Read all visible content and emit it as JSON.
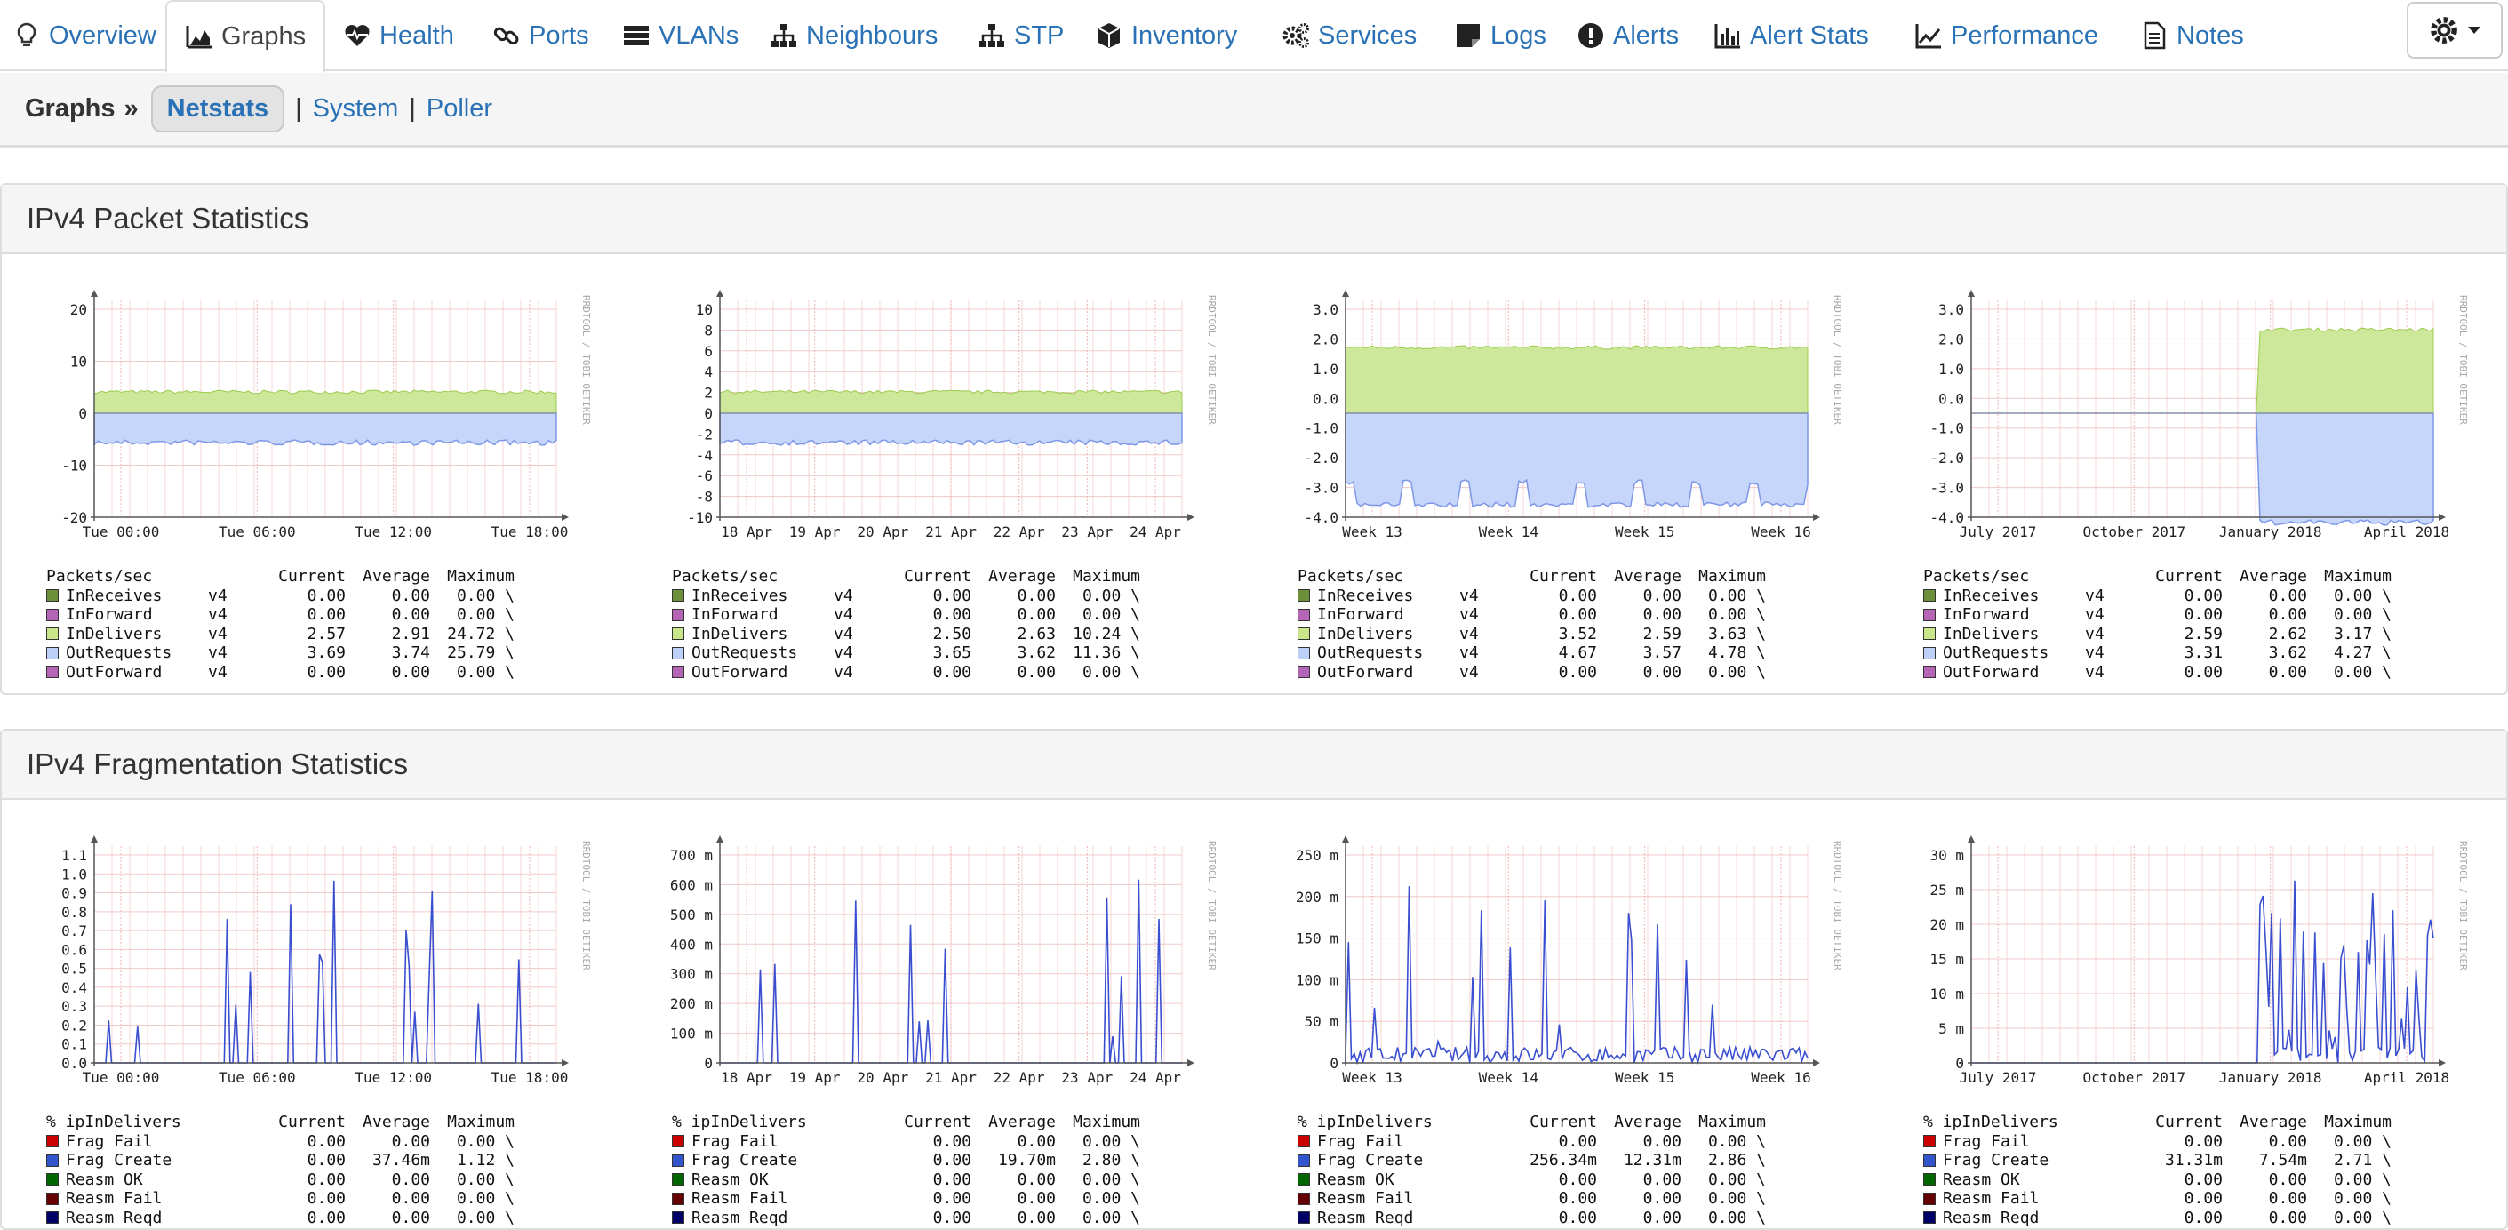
{
  "nav": {
    "tabs": [
      {
        "label": "Overview",
        "icon": "lightbulb-icon",
        "active": false
      },
      {
        "label": "Graphs",
        "icon": "area-chart-icon",
        "active": true
      },
      {
        "label": "Health",
        "icon": "heartbeat-icon",
        "active": false
      },
      {
        "label": "Ports",
        "icon": "link-icon",
        "active": false
      },
      {
        "label": "VLANs",
        "icon": "server-icon",
        "active": false
      },
      {
        "label": "Neighbours",
        "icon": "sitemap-icon",
        "active": false
      },
      {
        "label": "STP",
        "icon": "sitemap-icon",
        "active": false
      },
      {
        "label": "Inventory",
        "icon": "cube-icon",
        "active": false
      },
      {
        "label": "Services",
        "icon": "cogs-icon",
        "active": false
      },
      {
        "label": "Logs",
        "icon": "sticky-note-icon",
        "active": false
      },
      {
        "label": "Alerts",
        "icon": "exclamation-circle-icon",
        "active": false
      },
      {
        "label": "Alert Stats",
        "icon": "bar-chart-icon",
        "active": false
      },
      {
        "label": "Performance",
        "icon": "line-chart-icon",
        "active": false
      },
      {
        "label": "Notes",
        "icon": "file-text-icon",
        "active": false
      }
    ],
    "settings_icon": "gear-icon"
  },
  "subnav": {
    "lead": "Graphs",
    "separator": "»",
    "active": "Netstats",
    "links": [
      "System",
      "Poller"
    ],
    "divider": "|"
  },
  "panels": [
    {
      "title": "IPv4 Packet Statistics",
      "legend_header": {
        "label": "Packets/sec",
        "current": "Current",
        "average": "Average",
        "maximum": "Maximum"
      },
      "legend_colors": [
        "#6c8f3a",
        "#b565b5",
        "#c9e78a",
        "#bdd0f7",
        "#b565b5"
      ],
      "graphs": [
        {
          "watermark": "RRDTOOL / TOBI OETIKER",
          "x_labels": [
            "Tue 00:00",
            "Tue 06:00",
            "Tue 12:00",
            "Tue 18:00"
          ],
          "y_labels": [
            "20",
            "10",
            "0",
            "-10",
            "-20"
          ],
          "rows": [
            {
              "name": "InReceives",
              "ver": "v4",
              "current": "0.00",
              "average": "0.00",
              "maximum": "0.00 \\"
            },
            {
              "name": "InForward",
              "ver": "v4",
              "current": "0.00",
              "average": "0.00",
              "maximum": "0.00 \\"
            },
            {
              "name": "InDelivers",
              "ver": "v4",
              "current": "2.57",
              "average": "2.91",
              "maximum": "24.72 \\"
            },
            {
              "name": "OutRequests",
              "ver": "v4",
              "current": "3.69",
              "average": "3.74",
              "maximum": "25.79 \\"
            },
            {
              "name": "OutForward",
              "ver": "v4",
              "current": "0.00",
              "average": "0.00",
              "maximum": "0.00 \\"
            }
          ]
        },
        {
          "watermark": "RRDTOOL / TOBI OETIKER",
          "x_labels": [
            "18 Apr",
            "19 Apr",
            "20 Apr",
            "21 Apr",
            "22 Apr",
            "23 Apr",
            "24 Apr"
          ],
          "y_labels": [
            "10",
            "8",
            "6",
            "4",
            "2",
            "0",
            "-2",
            "-4",
            "-6",
            "-8",
            "-10"
          ],
          "rows": [
            {
              "name": "InReceives",
              "ver": "v4",
              "current": "0.00",
              "average": "0.00",
              "maximum": "0.00 \\"
            },
            {
              "name": "InForward",
              "ver": "v4",
              "current": "0.00",
              "average": "0.00",
              "maximum": "0.00 \\"
            },
            {
              "name": "InDelivers",
              "ver": "v4",
              "current": "2.50",
              "average": "2.63",
              "maximum": "10.24 \\"
            },
            {
              "name": "OutRequests",
              "ver": "v4",
              "current": "3.65",
              "average": "3.62",
              "maximum": "11.36 \\"
            },
            {
              "name": "OutForward",
              "ver": "v4",
              "current": "0.00",
              "average": "0.00",
              "maximum": "0.00 \\"
            }
          ]
        },
        {
          "watermark": "RRDTOOL / TOBI OETIKER",
          "x_labels": [
            "Week 13",
            "Week 14",
            "Week 15",
            "Week 16"
          ],
          "y_labels": [
            "3.0",
            "2.0",
            "1.0",
            "0.0",
            "-1.0",
            "-2.0",
            "-3.0",
            "-4.0"
          ],
          "rows": [
            {
              "name": "InReceives",
              "ver": "v4",
              "current": "0.00",
              "average": "0.00",
              "maximum": "0.00 \\"
            },
            {
              "name": "InForward",
              "ver": "v4",
              "current": "0.00",
              "average": "0.00",
              "maximum": "0.00 \\"
            },
            {
              "name": "InDelivers",
              "ver": "v4",
              "current": "3.52",
              "average": "2.59",
              "maximum": "3.63 \\"
            },
            {
              "name": "OutRequests",
              "ver": "v4",
              "current": "4.67",
              "average": "3.57",
              "maximum": "4.78 \\"
            },
            {
              "name": "OutForward",
              "ver": "v4",
              "current": "0.00",
              "average": "0.00",
              "maximum": "0.00 \\"
            }
          ]
        },
        {
          "watermark": "RRDTOOL / TOBI OETIKER",
          "x_labels": [
            "July 2017",
            "October 2017",
            "January 2018",
            "April 2018"
          ],
          "y_labels": [
            "3.0",
            "2.0",
            "1.0",
            "0.0",
            "-1.0",
            "-2.0",
            "-3.0",
            "-4.0"
          ],
          "rows": [
            {
              "name": "InReceives",
              "ver": "v4",
              "current": "0.00",
              "average": "0.00",
              "maximum": "0.00 \\"
            },
            {
              "name": "InForward",
              "ver": "v4",
              "current": "0.00",
              "average": "0.00",
              "maximum": "0.00 \\"
            },
            {
              "name": "InDelivers",
              "ver": "v4",
              "current": "2.59",
              "average": "2.62",
              "maximum": "3.17 \\"
            },
            {
              "name": "OutRequests",
              "ver": "v4",
              "current": "3.31",
              "average": "3.62",
              "maximum": "4.27 \\"
            },
            {
              "name": "OutForward",
              "ver": "v4",
              "current": "0.00",
              "average": "0.00",
              "maximum": "0.00 \\"
            }
          ]
        }
      ]
    },
    {
      "title": "IPv4 Fragmentation Statistics",
      "legend_header": {
        "label": "% ipInDelivers",
        "current": "Current",
        "average": "Average",
        "maximum": "Maximum"
      },
      "legend_colors": [
        "#cc0000",
        "#3355cc",
        "#006600",
        "#660000",
        "#000066"
      ],
      "graphs": [
        {
          "watermark": "RRDTOOL / TOBI OETIKER",
          "x_labels": [
            "Tue 00:00",
            "Tue 06:00",
            "Tue 12:00",
            "Tue 18:00"
          ],
          "y_labels": [
            "1.1",
            "1.0",
            "0.9",
            "0.8",
            "0.7",
            "0.6",
            "0.5",
            "0.4",
            "0.3",
            "0.2",
            "0.1",
            "0.0"
          ],
          "rows": [
            {
              "name": "Frag Fail",
              "ver": "",
              "current": "0.00",
              "average": "0.00",
              "maximum": "0.00 \\"
            },
            {
              "name": "Frag Create",
              "ver": "",
              "current": "0.00",
              "average": "37.46m",
              "maximum": "1.12 \\"
            },
            {
              "name": "Reasm OK",
              "ver": "",
              "current": "0.00",
              "average": "0.00",
              "maximum": "0.00 \\"
            },
            {
              "name": "Reasm Fail",
              "ver": "",
              "current": "0.00",
              "average": "0.00",
              "maximum": "0.00 \\"
            },
            {
              "name": "Reasm Reqd",
              "ver": "",
              "current": "0.00",
              "average": "0.00",
              "maximum": "0.00 \\"
            }
          ]
        },
        {
          "watermark": "RRDTOOL / TOBI OETIKER",
          "x_labels": [
            "18 Apr",
            "19 Apr",
            "20 Apr",
            "21 Apr",
            "22 Apr",
            "23 Apr",
            "24 Apr"
          ],
          "y_labels": [
            "700 m",
            "600 m",
            "500 m",
            "400 m",
            "300 m",
            "200 m",
            "100 m",
            "0"
          ],
          "rows": [
            {
              "name": "Frag Fail",
              "ver": "",
              "current": "0.00",
              "average": "0.00",
              "maximum": "0.00 \\"
            },
            {
              "name": "Frag Create",
              "ver": "",
              "current": "0.00",
              "average": "19.70m",
              "maximum": "2.80 \\"
            },
            {
              "name": "Reasm OK",
              "ver": "",
              "current": "0.00",
              "average": "0.00",
              "maximum": "0.00 \\"
            },
            {
              "name": "Reasm Fail",
              "ver": "",
              "current": "0.00",
              "average": "0.00",
              "maximum": "0.00 \\"
            },
            {
              "name": "Reasm Reqd",
              "ver": "",
              "current": "0.00",
              "average": "0.00",
              "maximum": "0.00 \\"
            }
          ]
        },
        {
          "watermark": "RRDTOOL / TOBI OETIKER",
          "x_labels": [
            "Week 13",
            "Week 14",
            "Week 15",
            "Week 16"
          ],
          "y_labels": [
            "250 m",
            "200 m",
            "150 m",
            "100 m",
            "50 m",
            "0"
          ],
          "rows": [
            {
              "name": "Frag Fail",
              "ver": "",
              "current": "0.00",
              "average": "0.00",
              "maximum": "0.00 \\"
            },
            {
              "name": "Frag Create",
              "ver": "",
              "current": "256.34m",
              "average": "12.31m",
              "maximum": "2.86 \\"
            },
            {
              "name": "Reasm OK",
              "ver": "",
              "current": "0.00",
              "average": "0.00",
              "maximum": "0.00 \\"
            },
            {
              "name": "Reasm Fail",
              "ver": "",
              "current": "0.00",
              "average": "0.00",
              "maximum": "0.00 \\"
            },
            {
              "name": "Reasm Reqd",
              "ver": "",
              "current": "0.00",
              "average": "0.00",
              "maximum": "0.00 \\"
            }
          ]
        },
        {
          "watermark": "RRDTOOL / TOBI OETIKER",
          "x_labels": [
            "July 2017",
            "October 2017",
            "January 2018",
            "April 2018"
          ],
          "y_labels": [
            "30 m",
            "25 m",
            "20 m",
            "15 m",
            "10 m",
            "5 m",
            "0"
          ],
          "rows": [
            {
              "name": "Frag Fail",
              "ver": "",
              "current": "0.00",
              "average": "0.00",
              "maximum": "0.00 \\"
            },
            {
              "name": "Frag Create",
              "ver": "",
              "current": "31.31m",
              "average": "7.54m",
              "maximum": "2.71 \\"
            },
            {
              "name": "Reasm OK",
              "ver": "",
              "current": "0.00",
              "average": "0.00",
              "maximum": "0.00 \\"
            },
            {
              "name": "Reasm Fail",
              "ver": "",
              "current": "0.00",
              "average": "0.00",
              "maximum": "0.00 \\"
            },
            {
              "name": "Reasm Reqd",
              "ver": "",
              "current": "0.00",
              "average": "0.00",
              "maximum": "0.00 \\"
            }
          ]
        }
      ]
    }
  ],
  "chart_data": [
    {
      "type": "area",
      "series": [
        {
          "name": "InDelivers",
          "current": 2.57,
          "average": 2.91,
          "maximum": 24.72
        },
        {
          "name": "OutRequests",
          "current": 3.69,
          "average": 3.74,
          "maximum": 25.79
        }
      ],
      "categories": [
        "Tue 00:00",
        "Tue 06:00",
        "Tue 12:00",
        "Tue 18:00"
      ],
      "ylim": [
        -20,
        20
      ]
    },
    {
      "type": "area",
      "series": [
        {
          "name": "InDelivers",
          "current": 2.5,
          "average": 2.63,
          "maximum": 10.24
        },
        {
          "name": "OutRequests",
          "current": 3.65,
          "average": 3.62,
          "maximum": 11.36
        }
      ],
      "categories": [
        "18 Apr",
        "19 Apr",
        "20 Apr",
        "21 Apr",
        "22 Apr",
        "23 Apr",
        "24 Apr"
      ],
      "ylim": [
        -10,
        10
      ]
    },
    {
      "type": "area",
      "series": [
        {
          "name": "InDelivers",
          "current": 3.52,
          "average": 2.59,
          "maximum": 3.63
        },
        {
          "name": "OutRequests",
          "current": 4.67,
          "average": 3.57,
          "maximum": 4.78
        }
      ],
      "categories": [
        "Week 13",
        "Week 14",
        "Week 15",
        "Week 16"
      ],
      "ylim": [
        -4,
        3
      ]
    },
    {
      "type": "area",
      "series": [
        {
          "name": "InDelivers",
          "current": 2.59,
          "average": 2.62,
          "maximum": 3.17
        },
        {
          "name": "OutRequests",
          "current": 3.31,
          "average": 3.62,
          "maximum": 4.27
        }
      ],
      "categories": [
        "July 2017",
        "October 2017",
        "January 2018",
        "April 2018"
      ],
      "ylim": [
        -4,
        3
      ]
    },
    {
      "type": "line",
      "series": [
        {
          "name": "Frag Create",
          "current": 0.0,
          "average": 0.03746,
          "maximum": 1.12
        }
      ],
      "categories": [
        "Tue 00:00",
        "Tue 06:00",
        "Tue 12:00",
        "Tue 18:00"
      ],
      "ylim": [
        0,
        1.1
      ]
    },
    {
      "type": "line",
      "series": [
        {
          "name": "Frag Create",
          "current": 0.0,
          "average": 0.0197,
          "maximum": 2.8
        }
      ],
      "categories": [
        "18 Apr",
        "19 Apr",
        "20 Apr",
        "21 Apr",
        "22 Apr",
        "23 Apr",
        "24 Apr"
      ],
      "ylim": [
        0,
        0.7
      ]
    },
    {
      "type": "line",
      "series": [
        {
          "name": "Frag Create",
          "current": 0.25634,
          "average": 0.01231,
          "maximum": 2.86
        }
      ],
      "categories": [
        "Week 13",
        "Week 14",
        "Week 15",
        "Week 16"
      ],
      "ylim": [
        0,
        0.25
      ]
    },
    {
      "type": "line",
      "series": [
        {
          "name": "Frag Create",
          "current": 0.03131,
          "average": 0.00754,
          "maximum": 2.71
        }
      ],
      "categories": [
        "July 2017",
        "October 2017",
        "January 2018",
        "April 2018"
      ],
      "ylim": [
        0,
        0.03
      ]
    }
  ]
}
